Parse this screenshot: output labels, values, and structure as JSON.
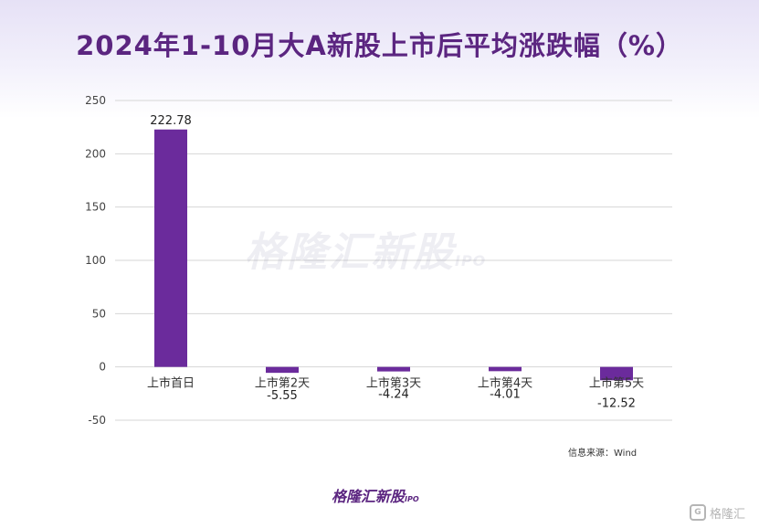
{
  "title": "2024年1-10月大A新股上市后平均涨跌幅（%）",
  "source": "信息来源：Wind",
  "watermark": {
    "text": "格隆汇新股",
    "sub": "IPO"
  },
  "brand": {
    "text": "格隆汇新股",
    "sub": "IPO"
  },
  "corner_logo": {
    "glyph": "G",
    "text": "格隆汇"
  },
  "chart_data": {
    "type": "bar",
    "categories": [
      "上市首日",
      "上市第2天",
      "上市第3天",
      "上市第4天",
      "上市第5天"
    ],
    "values": [
      222.78,
      -5.55,
      -4.24,
      -4.01,
      -12.52
    ],
    "data_labels": [
      "222.78",
      "-5.55",
      "-4.24",
      "-4.01",
      "-12.52"
    ],
    "ylim": [
      -50,
      250
    ],
    "yticks": [
      250,
      200,
      150,
      100,
      50,
      0,
      -50
    ],
    "grid": true,
    "bar_color": "#6b2b9c",
    "title": "2024年1-10月大A新股上市后平均涨跌幅（%）",
    "xlabel": "",
    "ylabel": ""
  }
}
